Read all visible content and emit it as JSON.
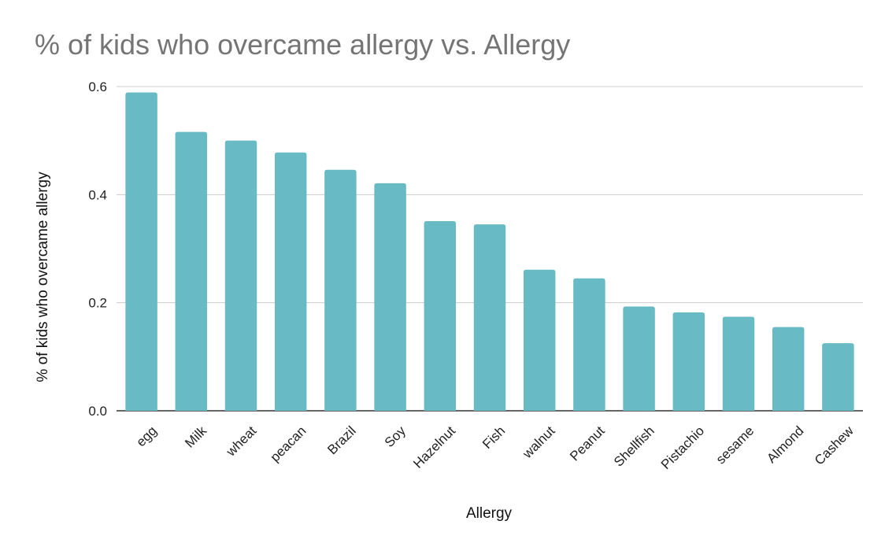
{
  "chart_data": {
    "type": "bar",
    "title": "% of kids who overcame allergy vs. Allergy",
    "xlabel": "Allergy",
    "ylabel": "% of kids who overcame allergy",
    "categories": [
      "egg",
      "Milk",
      "wheat",
      "peacan",
      "Brazil",
      "Soy",
      "Hazelnut",
      "Fish",
      "walnut",
      "Peanut",
      "Shellfish",
      "Pistachio",
      "sesame",
      "Almond",
      "Cashew"
    ],
    "values": [
      0.589,
      0.516,
      0.5,
      0.478,
      0.446,
      0.421,
      0.351,
      0.345,
      0.261,
      0.245,
      0.193,
      0.182,
      0.174,
      0.155,
      0.125
    ],
    "ylim": [
      0,
      0.6
    ],
    "yticks": [
      "0.0",
      "0.2",
      "0.4",
      "0.6"
    ],
    "grid": true,
    "bar_color": "#68bbc4",
    "grid_color": "#cccccc",
    "axis_color": "#333333"
  }
}
